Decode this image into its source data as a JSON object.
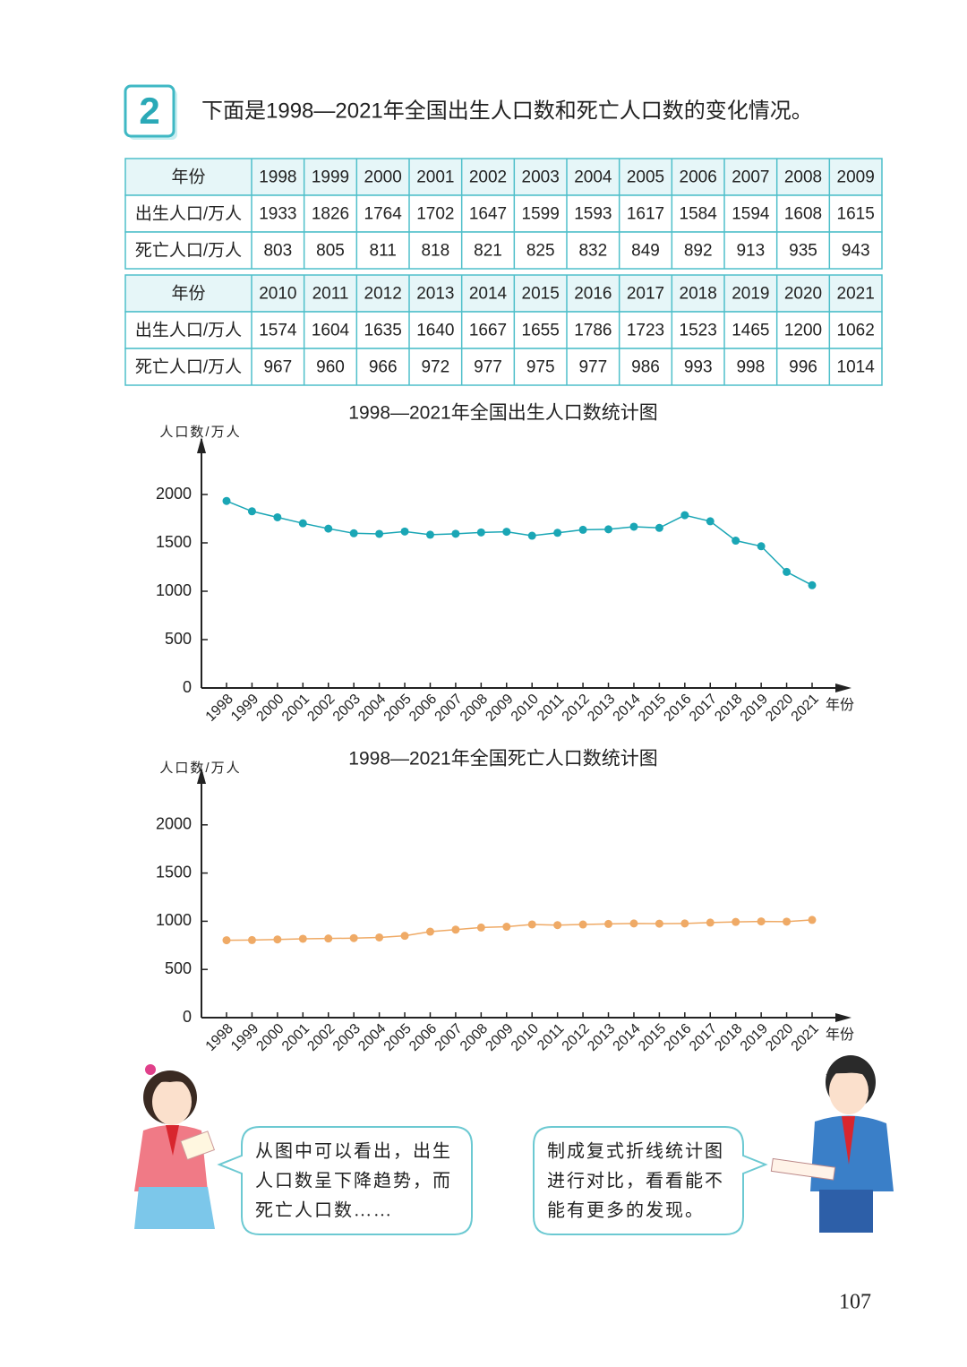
{
  "problem": {
    "number": "2",
    "text": "下面是1998—2021年全国出生人口数和死亡人口数的变化情况。"
  },
  "table": {
    "blocks": [
      {
        "rows": [
          [
            "年份",
            1998,
            1999,
            2000,
            2001,
            2002,
            2003,
            2004,
            2005,
            2006,
            2007,
            2008,
            2009
          ],
          [
            "出生人口/万人",
            1933,
            1826,
            1764,
            1702,
            1647,
            1599,
            1593,
            1617,
            1584,
            1594,
            1608,
            1615
          ],
          [
            "死亡人口/万人",
            803,
            805,
            811,
            818,
            821,
            825,
            832,
            849,
            892,
            913,
            935,
            943
          ]
        ]
      },
      {
        "rows": [
          [
            "年份",
            2010,
            2011,
            2012,
            2013,
            2014,
            2015,
            2016,
            2017,
            2018,
            2019,
            2020,
            2021
          ],
          [
            "出生人口/万人",
            1574,
            1604,
            1635,
            1640,
            1667,
            1655,
            1786,
            1723,
            1523,
            1465,
            1200,
            1062
          ],
          [
            "死亡人口/万人",
            967,
            960,
            966,
            972,
            977,
            975,
            977,
            986,
            993,
            998,
            996,
            1014
          ]
        ]
      }
    ]
  },
  "chart_data": [
    {
      "type": "line",
      "title": "1998—2021年全国出生人口数统计图",
      "y_label": "人口数/万人",
      "x_label": "年份",
      "categories": [
        "1998",
        "1999",
        "2000",
        "2001",
        "2002",
        "2003",
        "2004",
        "2005",
        "2006",
        "2007",
        "2008",
        "2009",
        "2010",
        "2011",
        "2012",
        "2013",
        "2014",
        "2015",
        "2016",
        "2017",
        "2018",
        "2019",
        "2020",
        "2021"
      ],
      "values": [
        1933,
        1826,
        1764,
        1702,
        1647,
        1599,
        1593,
        1617,
        1584,
        1594,
        1608,
        1615,
        1574,
        1604,
        1635,
        1640,
        1667,
        1655,
        1786,
        1723,
        1523,
        1465,
        1200,
        1062
      ],
      "color": "#1aa6b5",
      "ylim": [
        0,
        2500
      ],
      "yticks": [
        0,
        500,
        1000,
        1500,
        2000
      ]
    },
    {
      "type": "line",
      "title": "1998—2021年全国死亡人口数统计图",
      "y_label": "人口数/万人",
      "x_label": "年份",
      "categories": [
        "1998",
        "1999",
        "2000",
        "2001",
        "2002",
        "2003",
        "2004",
        "2005",
        "2006",
        "2007",
        "2008",
        "2009",
        "2010",
        "2011",
        "2012",
        "2013",
        "2014",
        "2015",
        "2016",
        "2017",
        "2018",
        "2019",
        "2020",
        "2021"
      ],
      "values": [
        803,
        805,
        811,
        818,
        821,
        825,
        832,
        849,
        892,
        913,
        935,
        943,
        967,
        960,
        966,
        972,
        977,
        975,
        977,
        986,
        993,
        998,
        996,
        1014
      ],
      "color": "#efaa66",
      "ylim": [
        0,
        2500
      ],
      "yticks": [
        0,
        500,
        1000,
        1500,
        2000
      ]
    }
  ],
  "bubbles": [
    {
      "lines": [
        "从图中可以看出，出生",
        "人口数呈下降趋势，而",
        "死亡人口数……"
      ]
    },
    {
      "lines": [
        "制成复式折线统计图",
        "进行对比，看看能不",
        "能有更多的发现。"
      ]
    }
  ],
  "page_number": "107"
}
